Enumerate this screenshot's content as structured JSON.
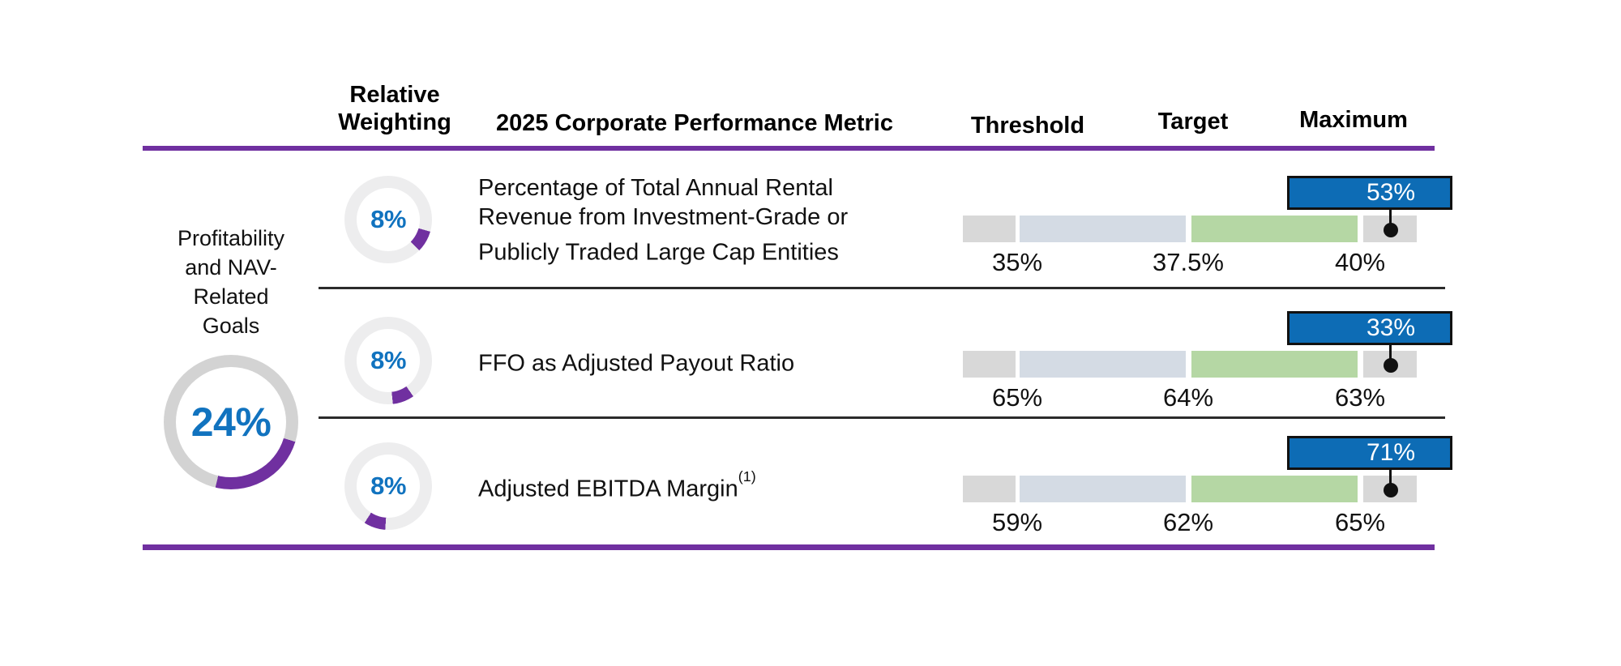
{
  "colors": {
    "purple": "#7030a0",
    "blue_text": "#1173bf",
    "callout_blue": "#0d6cb5",
    "steel": "#d4dbe4",
    "green": "#b5d7a4",
    "bar_gray": "#d8d8d8",
    "donut_track_small": "#ededee",
    "donut_track_big": "#d3d3d3"
  },
  "header": {
    "col_weighting": "Relative\nWeighting",
    "col_metric": "2025 Corporate Performance Metric",
    "col_threshold": "Threshold",
    "col_target": "Target",
    "col_maximum": "Maximum"
  },
  "group": {
    "label": "Profitability\nand NAV-\nRelated\nGoals",
    "weight_label": "24%",
    "weight_pct": 24,
    "donut_start_deg": 107
  },
  "rows": [
    {
      "weight_label": "8%",
      "weight_pct": 8,
      "donut_start_deg": 106,
      "metric": "Percentage of Total Annual Rental Revenue from Investment-Grade or Publicly Traded Large Cap Entities",
      "metric_sup": "",
      "threshold": "35%",
      "target": "37.5%",
      "maximum": "40%",
      "actual": "53%"
    },
    {
      "weight_label": "8%",
      "weight_pct": 8,
      "donut_start_deg": 145,
      "metric": "FFO as Adjusted Payout Ratio",
      "metric_sup": "",
      "threshold": "65%",
      "target": "64%",
      "maximum": "63%",
      "actual": "33%"
    },
    {
      "weight_label": "8%",
      "weight_pct": 8,
      "donut_start_deg": 184,
      "metric": "Adjusted EBITDA Margin",
      "metric_sup": "(1)",
      "threshold": "59%",
      "target": "62%",
      "maximum": "65%",
      "actual": "71%"
    }
  ],
  "chart_data": {
    "type": "bullet",
    "title": "2025 Corporate Performance Metric",
    "columns": [
      "Relative Weighting",
      "2025 Corporate Performance Metric",
      "Threshold",
      "Target",
      "Maximum"
    ],
    "group": {
      "label": "Profitability and NAV-Related Goals",
      "relative_weighting_pct": 24
    },
    "rows": [
      {
        "metric": "Percentage of Total Annual Rental Revenue from Investment-Grade or Publicly Traded Large Cap Entities",
        "relative_weighting_pct": 8,
        "threshold_pct": 35,
        "target_pct": 37.5,
        "maximum_pct": 40,
        "actual_pct": 53
      },
      {
        "metric": "FFO as Adjusted Payout Ratio",
        "relative_weighting_pct": 8,
        "threshold_pct": 65,
        "target_pct": 64,
        "maximum_pct": 63,
        "actual_pct": 33
      },
      {
        "metric": "Adjusted EBITDA Margin",
        "footnote": "(1)",
        "relative_weighting_pct": 8,
        "threshold_pct": 59,
        "target_pct": 62,
        "maximum_pct": 65,
        "actual_pct": 71
      }
    ],
    "layout_hints": {
      "bar_segments": [
        "below_threshold",
        "threshold_to_target",
        "target_to_maximum",
        "above_maximum"
      ],
      "actual_marker": "black_dot_with_blue_callout",
      "weighting_marker": "purple_donut_arc",
      "legend": false,
      "grid": false
    }
  }
}
